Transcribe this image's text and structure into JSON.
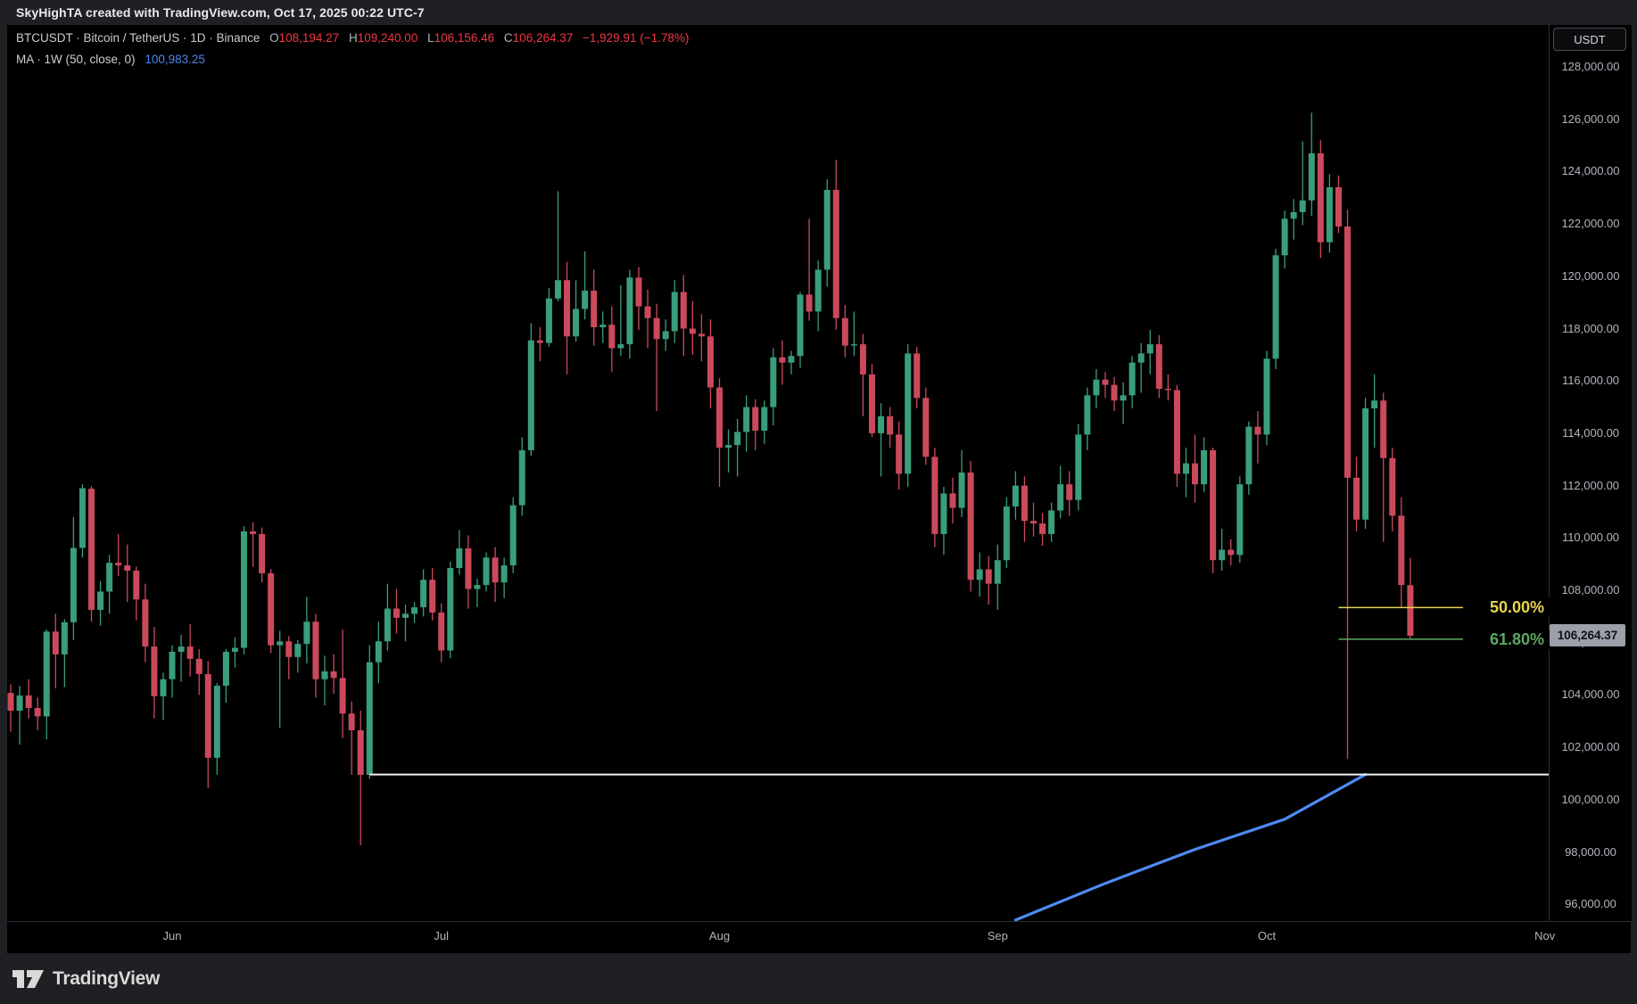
{
  "top_bar": {
    "attribution": "SkyHighTA created with TradingView.com, Oct 17, 2025 00:22 UTC-7"
  },
  "legend": {
    "symbol_line": "BTCUSDT · Bitcoin / TetherUS · 1D · Binance",
    "ohlc": {
      "o_label": "O",
      "o": "108,194.27",
      "h_label": "H",
      "h": "109,240.00",
      "l_label": "L",
      "l": "106,156.46",
      "c_label": "C",
      "c": "106,264.37",
      "change": "−1,929.91 (−1.78%)"
    },
    "ma_indicator": {
      "label": "MA · 1W (50, close, 0)",
      "value": "100,983.25"
    }
  },
  "price_axis": {
    "currency_button": "USDT",
    "ticks": [
      128000,
      126000,
      124000,
      122000,
      120000,
      118000,
      116000,
      114000,
      112000,
      110000,
      108000,
      106000,
      104000,
      102000,
      100000,
      98000,
      96000
    ],
    "last_price_tag": "106,264.37",
    "last_price_value": 106264.37
  },
  "time_axis": {
    "months": [
      {
        "label": "Jun",
        "day_index": 18
      },
      {
        "label": "Jul",
        "day_index": 48
      },
      {
        "label": "Aug",
        "day_index": 79
      },
      {
        "label": "Sep",
        "day_index": 110
      },
      {
        "label": "Oct",
        "day_index": 140
      },
      {
        "label": "Nov",
        "day_index": 171
      }
    ]
  },
  "footer": {
    "logo_text": "TradingView"
  },
  "colors": {
    "chrome_bg": "#1e2024",
    "plot_bg": "#000000",
    "up": "#3a9e7a",
    "down": "#ca4a5c",
    "ohlc_red": "#f23645",
    "ma_blue": "#4e86ec",
    "trendline_blue": "#4e8bf5",
    "ray_white": "#f2f2f2",
    "fib_50_yellow": "#e8d44d",
    "fib_618_green": "#5ca861",
    "axis_text": "#b2b5be",
    "tag_bg": "#9b9fa8"
  },
  "chart_data": {
    "type": "candlestick",
    "symbol": "BTCUSDT",
    "exchange": "Binance",
    "interval": "1D",
    "start_date": "2025-05-14",
    "y_range_visible": [
      95400,
      129600
    ],
    "grid": false,
    "ohlc_usdt": [
      [
        104080,
        104400,
        102600,
        103400
      ],
      [
        103400,
        104350,
        102100,
        103980
      ],
      [
        103980,
        104600,
        103100,
        103500
      ],
      [
        103500,
        103900,
        102650,
        103180
      ],
      [
        103180,
        106500,
        102300,
        106420
      ],
      [
        106420,
        107100,
        104250,
        105550
      ],
      [
        105550,
        106900,
        104300,
        106780
      ],
      [
        106780,
        110800,
        106100,
        109620
      ],
      [
        109620,
        112050,
        109250,
        111900
      ],
      [
        111880,
        111980,
        106800,
        107250
      ],
      [
        107250,
        108350,
        106650,
        107950
      ],
      [
        107950,
        109350,
        107100,
        109050
      ],
      [
        109050,
        110150,
        108550,
        108950
      ],
      [
        108950,
        109750,
        107550,
        108750
      ],
      [
        108750,
        108900,
        106850,
        107650
      ],
      [
        107650,
        108250,
        105250,
        105850
      ],
      [
        105850,
        106600,
        103100,
        103950
      ],
      [
        103950,
        104850,
        103050,
        104600
      ],
      [
        104600,
        105900,
        103900,
        105650
      ],
      [
        105650,
        106300,
        104500,
        105850
      ],
      [
        105850,
        106700,
        104700,
        105380
      ],
      [
        105380,
        105750,
        104000,
        104800
      ],
      [
        104800,
        105300,
        100450,
        101600
      ],
      [
        101600,
        104450,
        100950,
        104350
      ],
      [
        104350,
        105750,
        103700,
        105650
      ],
      [
        105650,
        106200,
        105050,
        105800
      ],
      [
        105800,
        110450,
        105550,
        110250
      ],
      [
        110250,
        110600,
        108900,
        110150
      ],
      [
        110150,
        110400,
        108300,
        108650
      ],
      [
        108650,
        108800,
        105600,
        105900
      ],
      [
        105900,
        106450,
        102750,
        106050
      ],
      [
        106050,
        106250,
        104600,
        105450
      ],
      [
        105450,
        106100,
        104850,
        105950
      ],
      [
        105950,
        107750,
        105200,
        106800
      ],
      [
        106800,
        107100,
        103900,
        104600
      ],
      [
        104600,
        105500,
        103600,
        104900
      ],
      [
        104900,
        105550,
        104050,
        104650
      ],
      [
        104650,
        106500,
        102350,
        103290
      ],
      [
        103290,
        103750,
        100950,
        102650
      ],
      [
        102650,
        103400,
        98250,
        100950
      ],
      [
        100950,
        105900,
        100800,
        105250
      ],
      [
        105250,
        106800,
        104450,
        106050
      ],
      [
        106050,
        108250,
        105700,
        107300
      ],
      [
        107300,
        108050,
        106350,
        106950
      ],
      [
        106950,
        107450,
        106050,
        107100
      ],
      [
        107100,
        107550,
        106750,
        107350
      ],
      [
        107350,
        108800,
        107000,
        108400
      ],
      [
        108400,
        108850,
        106850,
        107150
      ],
      [
        107150,
        107500,
        105250,
        105700
      ],
      [
        105700,
        109100,
        105400,
        108850
      ],
      [
        108850,
        110300,
        108600,
        109600
      ],
      [
        109600,
        110100,
        107300,
        108050
      ],
      [
        108050,
        108450,
        107350,
        108200
      ],
      [
        108200,
        109450,
        107950,
        109250
      ],
      [
        109250,
        109650,
        107550,
        108300
      ],
      [
        108300,
        109250,
        107700,
        108950
      ],
      [
        108950,
        111550,
        108650,
        111250
      ],
      [
        111250,
        113850,
        110850,
        113350
      ],
      [
        113350,
        118200,
        113150,
        117550
      ],
      [
        117550,
        118050,
        116750,
        117450
      ],
      [
        117450,
        119550,
        117300,
        119150
      ],
      [
        119150,
        123250,
        119050,
        119850
      ],
      [
        119850,
        120550,
        116250,
        117700
      ],
      [
        117700,
        119850,
        117500,
        118750
      ],
      [
        118750,
        120950,
        118350,
        119450
      ],
      [
        119450,
        120250,
        117350,
        118050
      ],
      [
        118050,
        118650,
        117450,
        118150
      ],
      [
        118150,
        118850,
        116350,
        117250
      ],
      [
        117250,
        119650,
        116950,
        117400
      ],
      [
        117400,
        120250,
        116850,
        119950
      ],
      [
        119950,
        120350,
        117950,
        118850
      ],
      [
        118850,
        119500,
        117250,
        118400
      ],
      [
        118400,
        118950,
        114850,
        117600
      ],
      [
        117600,
        118350,
        117150,
        117900
      ],
      [
        117900,
        119850,
        117450,
        119400
      ],
      [
        119400,
        120050,
        116950,
        118000
      ],
      [
        118000,
        119050,
        117000,
        117800
      ],
      [
        117800,
        118550,
        116750,
        117700
      ],
      [
        117700,
        118350,
        114950,
        115750
      ],
      [
        115750,
        116100,
        111950,
        113450
      ],
      [
        113450,
        114150,
        112500,
        113550
      ],
      [
        113550,
        114550,
        112350,
        114050
      ],
      [
        114050,
        115450,
        113300,
        115000
      ],
      [
        115000,
        115300,
        113350,
        114100
      ],
      [
        114100,
        115250,
        113600,
        115000
      ],
      [
        115000,
        117250,
        114300,
        116900
      ],
      [
        116900,
        117550,
        115850,
        116700
      ],
      [
        116700,
        117150,
        116250,
        116950
      ],
      [
        116950,
        119400,
        116500,
        119300
      ],
      [
        119300,
        122200,
        118300,
        118650
      ],
      [
        118650,
        120600,
        117900,
        120250
      ],
      [
        120250,
        123700,
        119600,
        123300
      ],
      [
        123300,
        124450,
        117950,
        118400
      ],
      [
        118400,
        118900,
        116900,
        117350
      ],
      [
        117350,
        118650,
        116950,
        117400
      ],
      [
        117400,
        117800,
        114650,
        116250
      ],
      [
        116250,
        116650,
        113850,
        114000
      ],
      [
        114000,
        115150,
        112350,
        114650
      ],
      [
        114650,
        115000,
        113450,
        113950
      ],
      [
        113950,
        114450,
        111850,
        112450
      ],
      [
        112450,
        117400,
        111950,
        117050
      ],
      [
        117050,
        117300,
        114950,
        115350
      ],
      [
        115350,
        115750,
        112800,
        113100
      ],
      [
        113100,
        113450,
        109650,
        110150
      ],
      [
        110150,
        111950,
        109350,
        111700
      ],
      [
        111700,
        112300,
        110550,
        111150
      ],
      [
        111150,
        113350,
        110800,
        112500
      ],
      [
        112500,
        112950,
        107950,
        108400
      ],
      [
        108400,
        109450,
        107750,
        108800
      ],
      [
        108800,
        109300,
        107450,
        108250
      ],
      [
        108250,
        109750,
        107250,
        109150
      ],
      [
        109150,
        111550,
        108850,
        111200
      ],
      [
        111200,
        112550,
        110700,
        112000
      ],
      [
        112000,
        112350,
        109850,
        110650
      ],
      [
        110650,
        111350,
        110050,
        110550
      ],
      [
        110550,
        110950,
        109700,
        110150
      ],
      [
        110150,
        111350,
        109850,
        111050
      ],
      [
        111050,
        112750,
        110750,
        112050
      ],
      [
        112050,
        112550,
        110850,
        111450
      ],
      [
        111450,
        114350,
        111050,
        113950
      ],
      [
        113950,
        115750,
        113350,
        115450
      ],
      [
        115450,
        116450,
        114950,
        116050
      ],
      [
        116050,
        116350,
        115350,
        115850
      ],
      [
        115850,
        116150,
        114850,
        115250
      ],
      [
        115250,
        115950,
        114350,
        115450
      ],
      [
        115450,
        116950,
        114950,
        116700
      ],
      [
        116700,
        117450,
        115550,
        117050
      ],
      [
        117050,
        117950,
        116250,
        117400
      ],
      [
        117400,
        117750,
        115350,
        115700
      ],
      [
        115700,
        116250,
        115250,
        115650
      ],
      [
        115650,
        115850,
        111950,
        112450
      ],
      [
        112450,
        113450,
        111550,
        112850
      ],
      [
        112850,
        113950,
        111350,
        112050
      ],
      [
        112050,
        113850,
        111750,
        113350
      ],
      [
        113350,
        113450,
        108650,
        109150
      ],
      [
        109150,
        110350,
        108750,
        109550
      ],
      [
        109550,
        109950,
        108950,
        109350
      ],
      [
        109350,
        112350,
        109050,
        112050
      ],
      [
        112050,
        114450,
        111650,
        114250
      ],
      [
        114250,
        114850,
        112850,
        113950
      ],
      [
        113950,
        117150,
        113550,
        116850
      ],
      [
        116850,
        121050,
        116450,
        120800
      ],
      [
        120800,
        122500,
        120300,
        122200
      ],
      [
        122200,
        122950,
        121400,
        122450
      ],
      [
        122450,
        125150,
        121950,
        122900
      ],
      [
        122900,
        126250,
        122300,
        124700
      ],
      [
        124700,
        125200,
        120700,
        121300
      ],
      [
        121300,
        123900,
        120900,
        123400
      ],
      [
        123400,
        123850,
        121650,
        121900
      ],
      [
        121900,
        122550,
        101550,
        112300
      ],
      [
        112300,
        113100,
        110250,
        110700
      ],
      [
        110700,
        115350,
        110350,
        114950
      ],
      [
        114950,
        116250,
        113450,
        115250
      ],
      [
        115250,
        115550,
        109850,
        113050
      ],
      [
        113050,
        113450,
        110250,
        110850
      ],
      [
        110850,
        111550,
        107350,
        108200
      ],
      [
        108194.27,
        109240,
        106156.46,
        106264.37
      ]
    ],
    "drawings": {
      "horizontal_ray": {
        "price": 100960,
        "from_day_index": 40
      },
      "fib_retracement": {
        "from_day_index": 148,
        "levels": [
          {
            "label": "50.00%",
            "price": 107340
          },
          {
            "label": "61.80%",
            "price": 106130
          }
        ]
      },
      "ma_projection_points": [
        [
          112,
          95400
        ],
        [
          122,
          96800
        ],
        [
          132,
          98100
        ],
        [
          142,
          99250
        ],
        [
          151,
          100960
        ]
      ]
    }
  }
}
